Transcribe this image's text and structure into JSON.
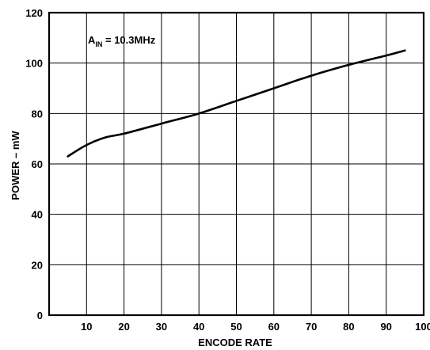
{
  "chart_data": {
    "type": "line",
    "title": "",
    "xlabel": "ENCODE RATE",
    "ylabel": "POWER – mW",
    "xlim": [
      0,
      100
    ],
    "ylim": [
      0,
      120
    ],
    "x_ticks": [
      10,
      20,
      30,
      40,
      50,
      60,
      70,
      80,
      90,
      100
    ],
    "y_ticks": [
      0,
      20,
      40,
      60,
      80,
      100,
      120
    ],
    "grid": true,
    "annotation": {
      "main": "A",
      "subscript": "IN",
      "rest": " = 10.3MHz"
    },
    "series": [
      {
        "x": [
          5,
          10,
          15,
          20,
          30,
          40,
          50,
          60,
          70,
          80,
          90,
          95
        ],
        "y": [
          63,
          67.5,
          70.5,
          72,
          76,
          80,
          85,
          90,
          95,
          99.3,
          103,
          105
        ]
      }
    ]
  }
}
